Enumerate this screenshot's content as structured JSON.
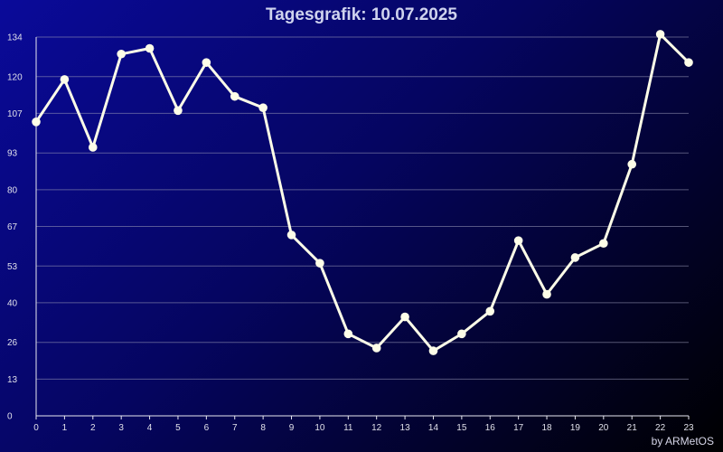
{
  "chart_data": {
    "type": "line",
    "title": "Tagesgrafik: 10.07.2025",
    "credit": "by ARMetOS",
    "x": [
      0,
      1,
      2,
      3,
      4,
      5,
      6,
      7,
      8,
      9,
      10,
      11,
      12,
      13,
      14,
      15,
      16,
      17,
      18,
      19,
      20,
      21,
      22,
      23
    ],
    "values": [
      104,
      119,
      95,
      128,
      130,
      108,
      125,
      113,
      109,
      64,
      54,
      29,
      24,
      35,
      23,
      29,
      37,
      62,
      43,
      56,
      61,
      89,
      135,
      125
    ],
    "yticks": [
      0,
      13,
      26,
      40,
      53,
      67,
      80,
      93,
      107,
      120,
      134
    ],
    "ylim": [
      0,
      134
    ],
    "xlim": [
      0,
      23
    ],
    "grid": true,
    "colors": {
      "line": "#fdfde8",
      "grid": "#9a9ab8",
      "background_top": "#0a0a9a",
      "background_bottom": "#000000"
    }
  }
}
